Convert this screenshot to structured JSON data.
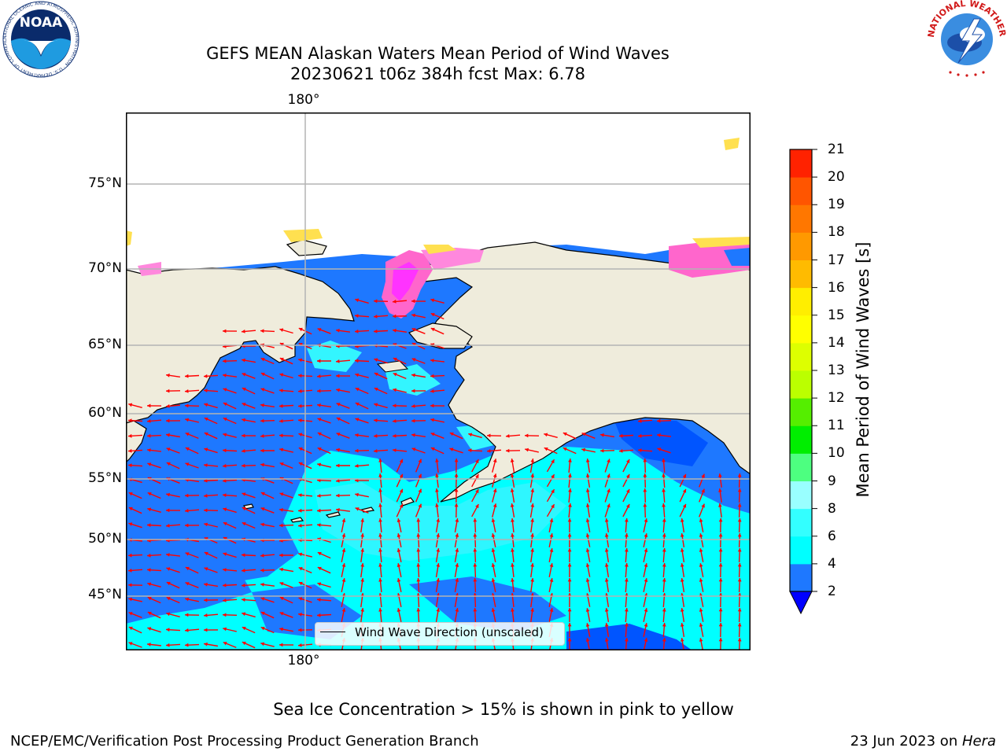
{
  "title": {
    "line1": "GEFS MEAN Alaskan Waters Mean Period of Wind Waves",
    "line2": "20230621 t06z 384h fcst   Max: 6.78"
  },
  "map": {
    "lon_label_top": "180°",
    "lon_label_bottom": "180°",
    "lat_labels": [
      "75°N",
      "70°N",
      "65°N",
      "60°N",
      "55°N",
      "50°N",
      "45°N"
    ],
    "legend_label": "Wind Wave Direction (unscaled)",
    "colors": {
      "land": "#efecdc",
      "ocean_low": "#0055ff",
      "ocean_mid": "#1e78ff",
      "ocean_high": "#00ffff",
      "ocean_high2": "#33f0ff",
      "arrow": "#ff0000",
      "ice_pink": "#ff66cc",
      "ice_magenta": "#ff33ff",
      "ice_yellow": "#ffe050",
      "grid": "#b4b4b4"
    }
  },
  "colorbar": {
    "label": "Mean Period of Wind Waves [s]",
    "ticks": [
      "2",
      "4",
      "6",
      "8",
      "9",
      "10",
      "11",
      "12",
      "13",
      "14",
      "15",
      "16",
      "17",
      "18",
      "19",
      "20",
      "21"
    ],
    "bins": [
      {
        "from": 2,
        "to": 4,
        "color": "#1e78ff"
      },
      {
        "from": 4,
        "to": 6,
        "color": "#00ffff"
      },
      {
        "from": 6,
        "to": 8,
        "color": "#33ffff"
      },
      {
        "from": 8,
        "to": 9,
        "color": "#99ffff"
      },
      {
        "from": 9,
        "to": 10,
        "color": "#4dff80"
      },
      {
        "from": 10,
        "to": 11,
        "color": "#00ee00"
      },
      {
        "from": 11,
        "to": 12,
        "color": "#55ee00"
      },
      {
        "from": 12,
        "to": 13,
        "color": "#bbff00"
      },
      {
        "from": 13,
        "to": 14,
        "color": "#ddff00"
      },
      {
        "from": 14,
        "to": 15,
        "color": "#ffff00"
      },
      {
        "from": 15,
        "to": 16,
        "color": "#ffee00"
      },
      {
        "from": 16,
        "to": 17,
        "color": "#ffbb00"
      },
      {
        "from": 17,
        "to": 18,
        "color": "#ff9900"
      },
      {
        "from": 18,
        "to": 19,
        "color": "#ff7700"
      },
      {
        "from": 19,
        "to": 20,
        "color": "#ff5500"
      },
      {
        "from": 20,
        "to": 21,
        "color": "#ff2200"
      }
    ],
    "extend_color": "#0000ff"
  },
  "ice_note": "Sea Ice Concentration > 15% is shown in pink to yellow",
  "footer": {
    "left": "NCEP/EMC/Verification Post Processing Product Generation Branch",
    "right_date": "23 Jun 2023 on ",
    "right_host": "Hera"
  },
  "logos": {
    "noaa_text": "NOAA",
    "noaa_ring": "NATIONAL OCEANIC AND ATMOSPHERIC ADMINISTRATION · U.S. DEPARTMENT OF COMMERCE",
    "nws_ring": "NATIONAL WEATHER SERVICE"
  }
}
